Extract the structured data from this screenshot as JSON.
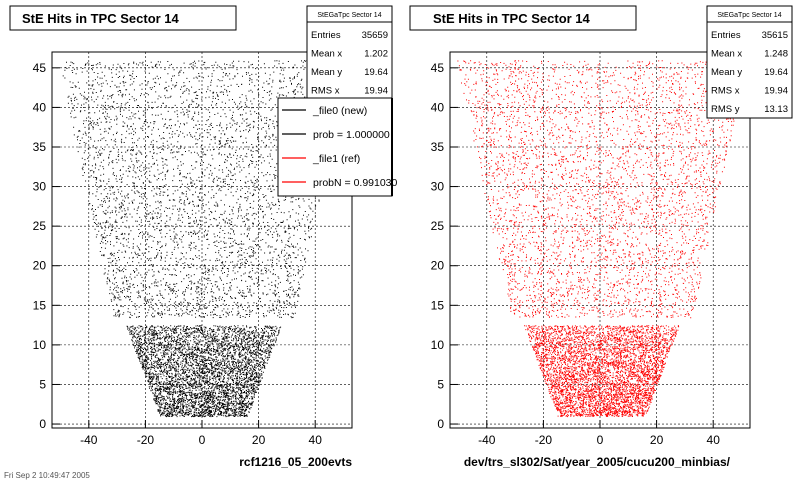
{
  "chart_data": [
    {
      "type": "scatter",
      "title": "StE Hits in TPC Sector 14",
      "xlabel": "rcf1216_05_200evts",
      "ylabel": "",
      "xlim": [
        -53,
        53
      ],
      "ylim": [
        -0.5,
        47
      ],
      "xticks": [
        -40,
        -20,
        0,
        20,
        40
      ],
      "yticks": [
        0,
        5,
        10,
        15,
        20,
        25,
        30,
        35,
        40,
        45
      ],
      "grid": true,
      "color": "#000000",
      "series": [
        {
          "values_description": "",
          "shape": "tpc-sector"
        }
      ],
      "stats": {
        "name": "StEGaTpc Sector 14",
        "rows": [
          {
            "label": "Entries",
            "value": "35659"
          },
          {
            "label": "Mean x",
            "value": "1.202"
          },
          {
            "label": "Mean y",
            "value": "19.64"
          },
          {
            "label": "RMS x",
            "value": "19.94"
          }
        ]
      },
      "legend": {
        "placement": "top-right",
        "entries": [
          {
            "label": "_file0 (new)",
            "color": "#000000"
          },
          {
            "label": "prob = 1.000000",
            "color": "#000000"
          },
          {
            "label": "_file1 (ref)",
            "color": "#ff0000"
          },
          {
            "label": "probN = 0.991030",
            "color": "#ff0000"
          }
        ]
      }
    },
    {
      "type": "scatter",
      "title": "StE Hits in TPC Sector 14",
      "xlabel": "dev/trs_sl302/Sat/year_2005/cucu200_minbias/",
      "ylabel": "",
      "xlim": [
        -53,
        53
      ],
      "ylim": [
        -0.5,
        47
      ],
      "xticks": [
        -40,
        -20,
        0,
        20,
        40
      ],
      "yticks": [
        0,
        5,
        10,
        15,
        20,
        25,
        30,
        35,
        40,
        45
      ],
      "grid": true,
      "color": "#ff0000",
      "stats": {
        "name": "StEGaTpc Sector 14",
        "rows": [
          {
            "label": "Entries",
            "value": "35615"
          },
          {
            "label": "Mean x",
            "value": "1.248"
          },
          {
            "label": "Mean y",
            "value": "19.64"
          },
          {
            "label": "RMS x",
            "value": "19.94"
          },
          {
            "label": "RMS y",
            "value": "13.13"
          }
        ]
      }
    }
  ],
  "footer": "Fri Sep 2 10:49:47 2005"
}
